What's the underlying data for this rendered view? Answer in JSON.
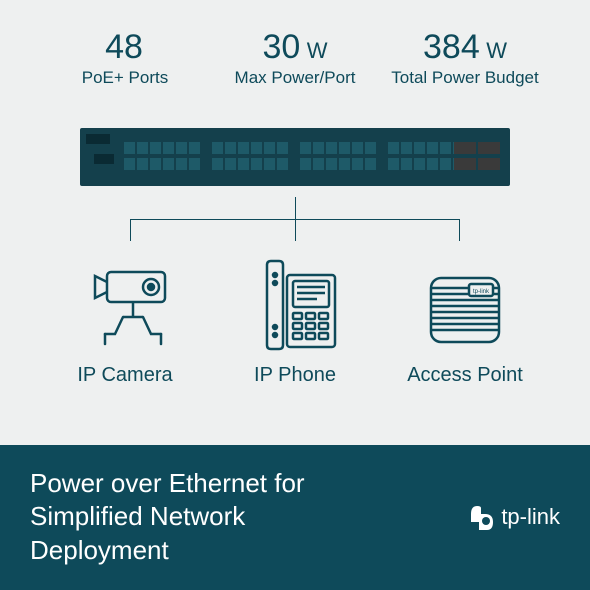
{
  "stats": [
    {
      "value": "48",
      "unit": "",
      "label": "PoE+ Ports"
    },
    {
      "value": "30",
      "unit": "W",
      "label": "Max Power/Port"
    },
    {
      "value": "384",
      "unit": "W",
      "label": "Total Power Budget"
    }
  ],
  "switch": {
    "body_color": "#14404c",
    "port_bg": "#0a2a33",
    "port_fill": "#1e5a68",
    "sfp_fill": "#3a3a3a",
    "port_rows": 2,
    "port_groups": 4,
    "ports_per_group": 6,
    "sfp_ports": 4
  },
  "connector_color": "#0e4a5a",
  "devices": [
    {
      "label": "IP Camera",
      "icon": "camera"
    },
    {
      "label": "IP Phone",
      "icon": "phone"
    },
    {
      "label": "Access Point",
      "icon": "ap"
    }
  ],
  "device_icon_stroke": "#0e4a5a",
  "footer": {
    "text_line1": "Power over Ethernet for",
    "text_line2": "Simplified Network",
    "text_line3": "Deployment",
    "brand": "tp-link",
    "bg_color": "#0e4a5a",
    "text_color": "#ffffff"
  },
  "page_bg": "#eef0f0",
  "text_color": "#0e4a5a"
}
